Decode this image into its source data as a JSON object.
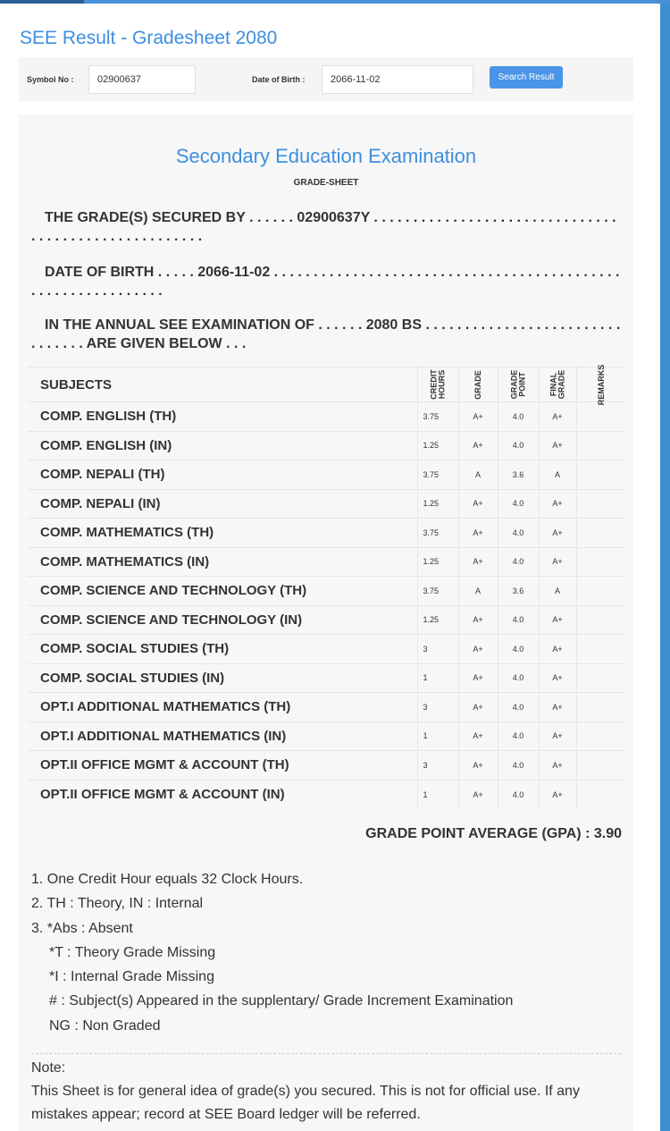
{
  "page_title": "SEE Result - Gradesheet 2080",
  "search": {
    "symbol_label": "Symbol No :",
    "symbol_value": "02900637",
    "dob_label": "Date of Birth :",
    "dob_value": "2066-11-02",
    "button": "Search Result"
  },
  "sheet": {
    "heading": "Secondary Education Examination",
    "subheading": "GRADE-SHEET",
    "secured_by": "THE GRADE(S) SECURED BY . . . . . . 02900637Y . . . . . . . . . . . . . . . . . . . . . . . . . . . . . . . . . . . . . . . . . . . . . . . . . . . . .",
    "dob": "DATE OF BIRTH . . . . . 2066-11-02 . . . . . . . . . . . . . . . . . . . . . . . . . . . . . . . . . . . . . . . . . . . . . . . . . . . . . . . . . . . . .",
    "exam": "IN THE ANNUAL SEE EXAMINATION OF . . . . . . 2080 BS . . . . . . . . . . . . . . . . . . . . . . . . . . . . . . . . ARE GIVEN BELOW . . .",
    "columns": [
      "SUBJECTS",
      "CREDIT\nHOURS",
      "GRADE",
      "GRADE\nPOINT",
      "FINAL\nGRADE",
      "REMARKS"
    ],
    "rows": [
      [
        "COMP. ENGLISH (TH)",
        "3.75",
        "A+",
        "4.0",
        "A+",
        ""
      ],
      [
        "COMP. ENGLISH (IN)",
        "1.25",
        "A+",
        "4.0",
        "A+",
        ""
      ],
      [
        "COMP. NEPALI (TH)",
        "3.75",
        "A",
        "3.6",
        "A",
        ""
      ],
      [
        "COMP. NEPALI (IN)",
        "1.25",
        "A+",
        "4.0",
        "A+",
        ""
      ],
      [
        "COMP. MATHEMATICS (TH)",
        "3.75",
        "A+",
        "4.0",
        "A+",
        ""
      ],
      [
        "COMP. MATHEMATICS (IN)",
        "1.25",
        "A+",
        "4.0",
        "A+",
        ""
      ],
      [
        "COMP. SCIENCE AND TECHNOLOGY (TH)",
        "3.75",
        "A",
        "3.6",
        "A",
        ""
      ],
      [
        "COMP. SCIENCE AND TECHNOLOGY (IN)",
        "1.25",
        "A+",
        "4.0",
        "A+",
        ""
      ],
      [
        "COMP. SOCIAL STUDIES (TH)",
        "3",
        "A+",
        "4.0",
        "A+",
        ""
      ],
      [
        "COMP. SOCIAL STUDIES (IN)",
        "1",
        "A+",
        "4.0",
        "A+",
        ""
      ],
      [
        "OPT.I ADDITIONAL MATHEMATICS (TH)",
        "3",
        "A+",
        "4.0",
        "A+",
        ""
      ],
      [
        "OPT.I ADDITIONAL MATHEMATICS (IN)",
        "1",
        "A+",
        "4.0",
        "A+",
        ""
      ],
      [
        "OPT.II OFFICE MGMT & ACCOUNT (TH)",
        "3",
        "A+",
        "4.0",
        "A+",
        ""
      ],
      [
        "OPT.II OFFICE MGMT & ACCOUNT (IN)",
        "1",
        "A+",
        "4.0",
        "A+",
        ""
      ]
    ],
    "gpa": "GRADE POINT AVERAGE (GPA) : 3.90",
    "legend": [
      "1. One Credit Hour equals 32 Clock Hours.",
      "2. TH : Theory, IN : Internal",
      "3. *Abs : Absent",
      "*T : Theory Grade Missing",
      "*I : Internal Grade Missing",
      "# : Subject(s) Appeared in the supplentary/ Grade Increment Examination",
      "NG : Non Graded"
    ],
    "note_title": "Note:",
    "note_text": "This Sheet is for general idea of grade(s) you secured. This is not for official use. If any mistakes appear; record at SEE Board ledger will be referred."
  }
}
